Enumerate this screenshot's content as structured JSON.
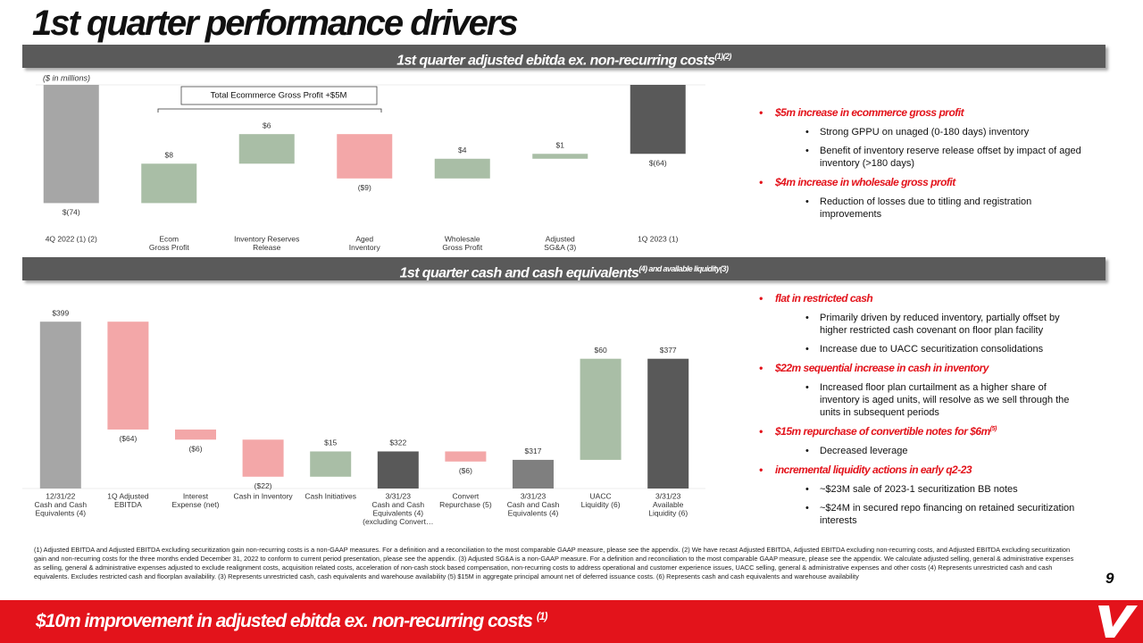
{
  "title": "1st quarter performance drivers",
  "sections": [
    {
      "heading": "1st quarter adjusted ebitda ex. non-recurring costs",
      "heading_note": "(1)(2)",
      "bullets": [
        {
          "text": "$5m increase in ecommerce gross profit",
          "items": [
            "Strong GPPU on unaged (0-180 days) inventory",
            "Benefit of inventory reserve release offset by impact of aged inventory (>180 days)"
          ]
        },
        {
          "text": "$4m increase in wholesale gross profit",
          "items": [
            "Reduction of losses due to titling and registration improvements"
          ]
        }
      ]
    },
    {
      "heading": "1st quarter cash and cash equivalents",
      "heading_note": "(4) and available liquidity(3)",
      "bullets": [
        {
          "text": "flat in restricted cash",
          "items": [
            "Primarily driven by reduced inventory, partially offset by higher restricted cash covenant on floor plan facility",
            "Increase due to UACC securitization consolidations"
          ]
        },
        {
          "text": "$22m sequential increase in cash in inventory",
          "items": [
            "Increased floor plan curtailment as a higher share of inventory is aged units, will resolve as we sell through the units in subsequent periods"
          ]
        },
        {
          "text": "$15m repurchase of convertible notes for $6m",
          "note": "(5)",
          "items": [
            "Decreased leverage"
          ]
        },
        {
          "text": "incremental liquidity actions in early q2-23",
          "items": [
            "~$23M sale of 2023-1 securitization BB notes",
            "~$24M in secured repo financing on retained securitization interests"
          ]
        }
      ]
    }
  ],
  "chart_data": [
    {
      "type": "waterfall",
      "unit_label": "($ in millions)",
      "annotation": "Total Ecommerce Gross Profit +$5M",
      "categories": [
        [
          "4Q 2022 (1) (2)"
        ],
        [
          "Ecom",
          "Gross Profit"
        ],
        [
          "Inventory Reserves",
          "Release"
        ],
        [
          "Aged",
          "Inventory"
        ],
        [
          "Wholesale",
          "Gross Profit"
        ],
        [
          "Adjusted",
          "SG&A (3)"
        ],
        [
          "1Q 2023 (1)"
        ]
      ],
      "values": [
        -74,
        8,
        6,
        -9,
        4,
        1,
        -64
      ],
      "value_labels": [
        "$(74)",
        "$8",
        "$6",
        "($9)",
        "$4",
        "$1",
        "$(64)"
      ],
      "measure": [
        "absolute",
        "relative",
        "relative",
        "relative",
        "relative",
        "relative",
        "absolute"
      ],
      "colors": [
        "#a6a6a6",
        "#a9bea6",
        "#a9bea6",
        "#f3a7a8",
        "#a9bea6",
        "#a9bea6",
        "#595959"
      ],
      "ylim": [
        -79,
        -50
      ]
    },
    {
      "type": "waterfall",
      "categories": [
        [
          "12/31/22",
          "Cash and Cash",
          "Equivalents (4)"
        ],
        [
          "1Q Adjusted",
          "EBITDA"
        ],
        [
          "Interest",
          "Expense (net)"
        ],
        [
          "Cash in Inventory"
        ],
        [
          "Cash Initiatives"
        ],
        [
          "3/31/23",
          "Cash and Cash",
          "Equivalents (4)",
          "(excluding Convert…"
        ],
        [
          "Convert",
          "Repurchase (5)"
        ],
        [
          "3/31/23",
          "Cash and Cash",
          "Equivalents (4)"
        ],
        [
          "UACC",
          "Liquidity (6)"
        ],
        [
          "3/31/23",
          "Available",
          "Liquidity (6)"
        ]
      ],
      "values": [
        399,
        -64,
        -6,
        -22,
        15,
        322,
        -6,
        317,
        60,
        377
      ],
      "value_labels": [
        "$399",
        "($64)",
        "($6)",
        "($22)",
        "$15",
        "$322",
        "($6)",
        "$317",
        "$60",
        "$377"
      ],
      "measure": [
        "absolute",
        "relative",
        "relative",
        "relative",
        "relative",
        "absolute",
        "relative",
        "absolute",
        "relative",
        "absolute"
      ],
      "colors": [
        "#a6a6a6",
        "#f3a7a8",
        "#f3a7a8",
        "#f3a7a8",
        "#a9bea6",
        "#595959",
        "#f3a7a8",
        "#7f7f7f",
        "#a9bea6",
        "#595959"
      ],
      "ylim": [
        300,
        415
      ]
    }
  ],
  "footnotes": "(1) Adjusted EBITDA and Adjusted EBITDA excluding securitization gain non-recurring costs is a non-GAAP measures. For a definition and a reconciliation to the most comparable GAAP measure, please see the appendix. (2) We have recast Adjusted EBITDA, Adjusted EBITDA excluding non-recurring costs, and Adjusted EBITDA excluding securitization gain and non-recurring costs for the three months ended December 31, 2022 to conform to current period presentation, please see the appendix. (3) Adjusted SG&A is a non-GAAP measure. For a definition and reconciliation to the most comparable GAAP measure, please see the appendix. We calculate adjusted selling, general & administrative expenses as selling, general & administrative expenses adjusted to exclude realignment costs, acquisition related costs, acceleration of non-cash stock based compensation, non-recurring costs to address operational and customer experience issues, UACC selling, general & administrative expenses and other costs (4) Represents unrestricted cash and cash equivalents. Excludes restricted cash and floorplan availability. (3) Represents unrestricted cash, cash equivalents and warehouse availability (5) $15M in aggregate principal amount net of deferred issuance costs. (6) Represents cash and cash equivalents and warehouse availability",
  "page_number": "9",
  "banner": {
    "text": "$10m improvement in adjusted ebitda ex. non-recurring costs",
    "note": "(1)"
  }
}
